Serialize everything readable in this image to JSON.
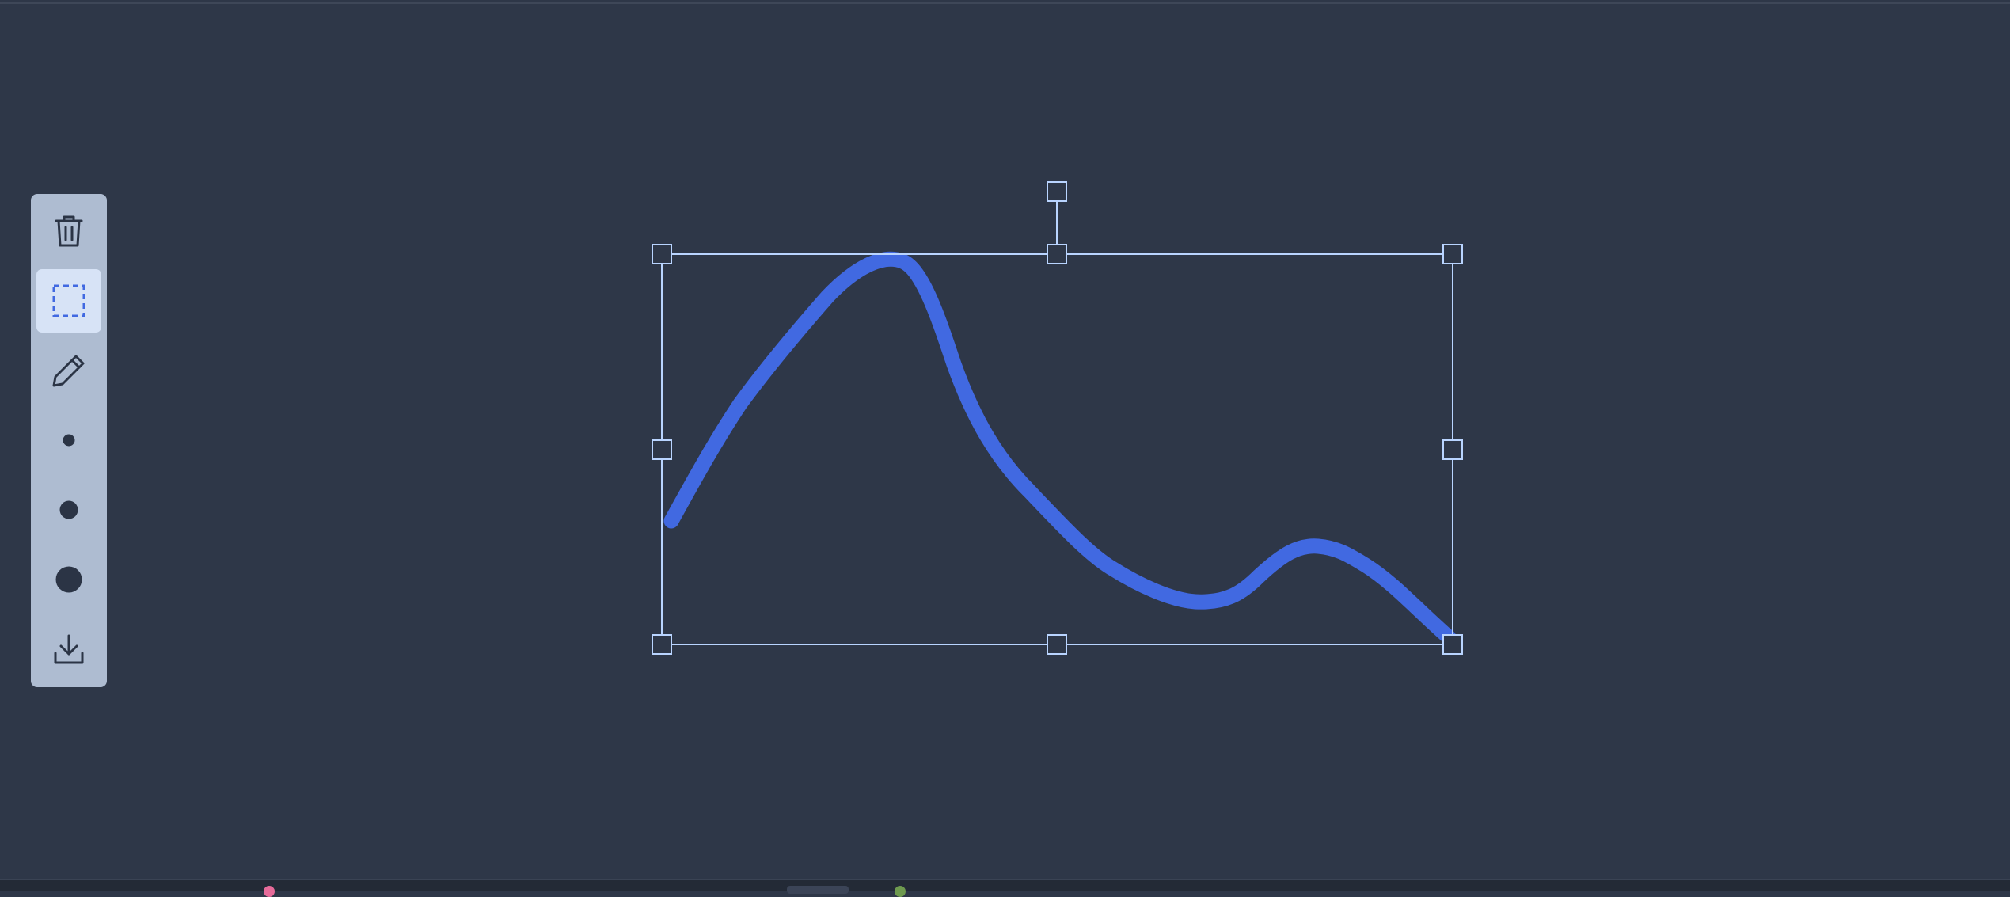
{
  "theme": {
    "background": "#2e3748",
    "toolbar_background": "#aebcd1",
    "active_tool_background": "#d7e3f6",
    "icon_color": "#2b3445",
    "stroke_color": "#4169e1",
    "selection_color": "#b9d4ff"
  },
  "toolbar": {
    "tools": [
      {
        "name": "delete",
        "icon": "trash-icon",
        "active": false
      },
      {
        "name": "select",
        "icon": "dashed-selection-icon",
        "active": true
      },
      {
        "name": "pen",
        "icon": "pencil-icon",
        "active": false
      },
      {
        "name": "brush-small",
        "icon": "small-dot-icon",
        "active": false
      },
      {
        "name": "brush-medium",
        "icon": "medium-dot-icon",
        "active": false
      },
      {
        "name": "brush-large",
        "icon": "large-dot-icon",
        "active": false
      },
      {
        "name": "download",
        "icon": "download-icon",
        "active": false
      }
    ]
  },
  "drawing": {
    "stroke": "freehand-curve",
    "selected": true
  }
}
